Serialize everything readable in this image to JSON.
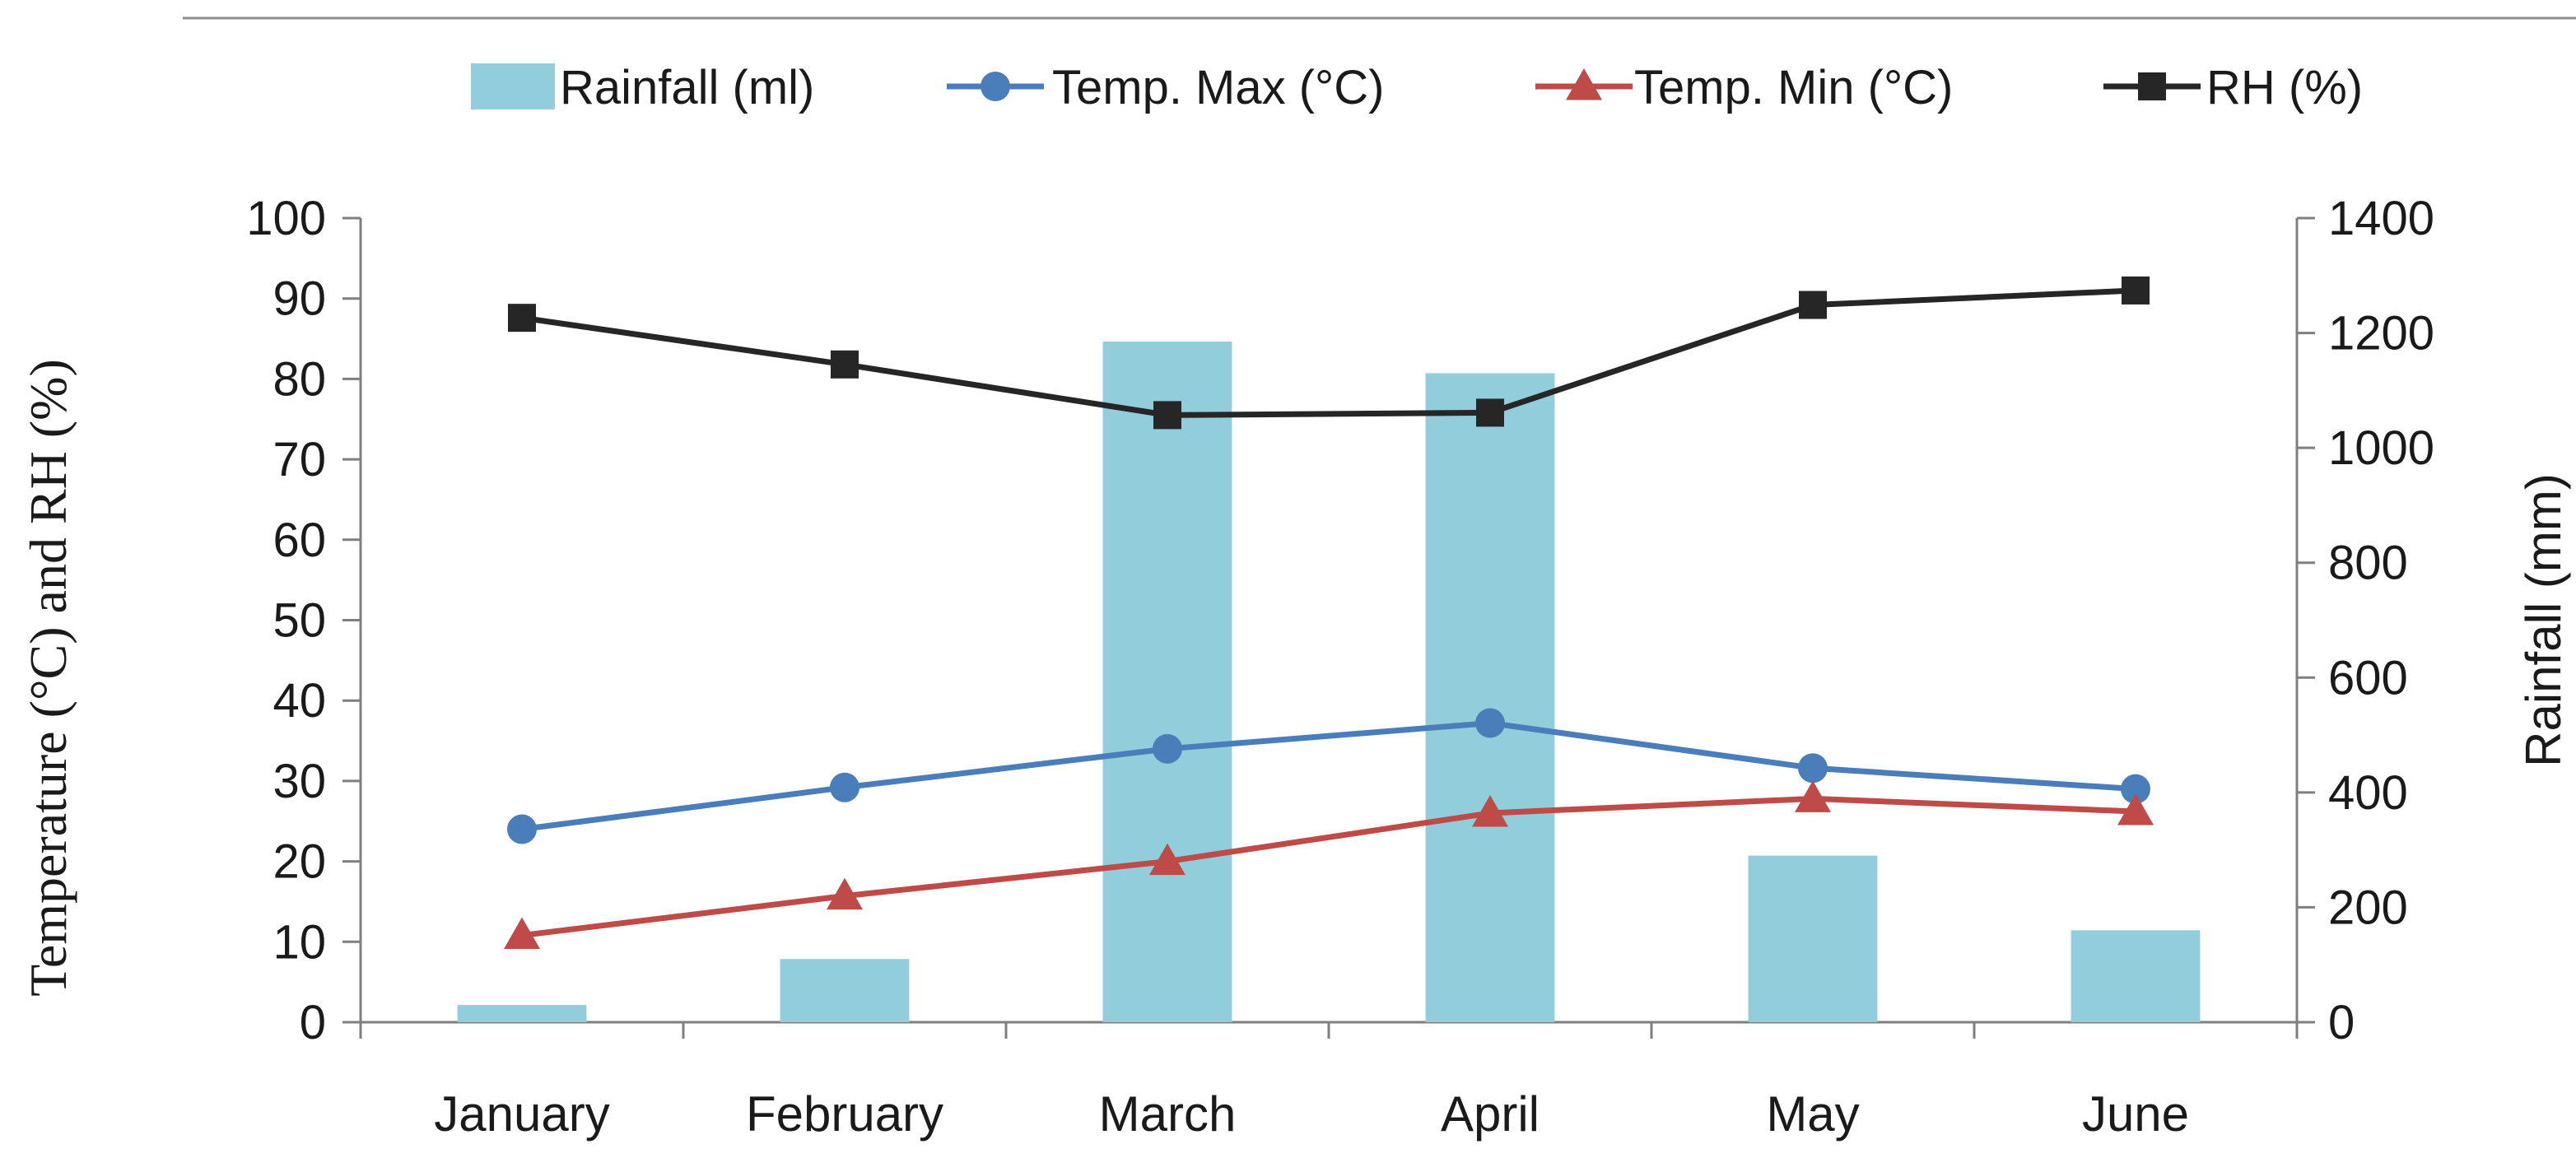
{
  "chart_data": {
    "type": "bar+line",
    "title": "",
    "categories": [
      "January",
      "February",
      "March",
      "April",
      "May",
      "June"
    ],
    "ylabel_left": "Temperature (°C) and RH (%)",
    "ylabel_right": "Rainfall (mm)",
    "ylim_left": [
      0,
      100
    ],
    "ylim_right": [
      0,
      1400
    ],
    "yticks_left": [
      "0",
      "10",
      "20",
      "30",
      "40",
      "50",
      "60",
      "70",
      "80",
      "90",
      "100"
    ],
    "yticks_right": [
      "0",
      "200",
      "400",
      "600",
      "800",
      "1000",
      "1200",
      "1400"
    ],
    "grid": false,
    "legend_position": "top",
    "series": [
      {
        "name": "Rainfall (ml)",
        "type": "bar",
        "axis": "right",
        "color": "#92cddc",
        "values": [
          30,
          110,
          1185,
          1130,
          290,
          160
        ]
      },
      {
        "name": "Temp. Max (°C)",
        "type": "line",
        "axis": "left",
        "marker": "circle",
        "color": "#4a7ebb",
        "values": [
          24,
          29.2,
          34,
          37.2,
          31.6,
          29
        ]
      },
      {
        "name": "Temp. Min (°C)",
        "type": "line",
        "axis": "left",
        "marker": "triangle",
        "color": "#be4b48",
        "values": [
          10.8,
          15.7,
          20,
          26,
          27.8,
          26.2
        ]
      },
      {
        "name": "RH (%)",
        "type": "line",
        "axis": "left",
        "marker": "square",
        "color": "#262626",
        "values": [
          87.6,
          81.8,
          75.5,
          75.8,
          89.2,
          91
        ]
      }
    ],
    "axis_color": "#7f7f7f"
  }
}
